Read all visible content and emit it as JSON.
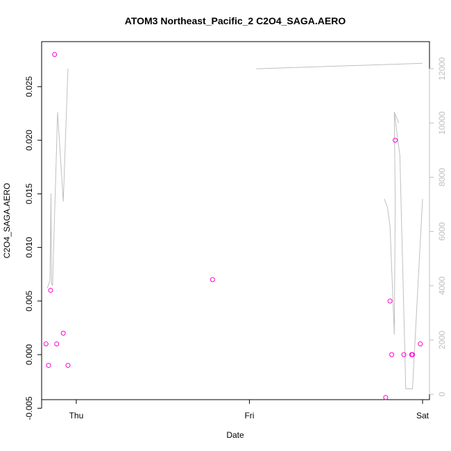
{
  "chart_data": {
    "type": "scatter",
    "title": "ATOM3 Northeast_Pacific_2 C2O4_SAGA.AERO",
    "xlabel": "Date",
    "ylabel": "C2O4_SAGA.AERO",
    "x_ticks": [
      {
        "label": "Thu",
        "value": 0
      },
      {
        "label": "Fri",
        "value": 1
      },
      {
        "label": "Sat",
        "value": 2
      }
    ],
    "xlim": [
      -0.2,
      2.04
    ],
    "ylim": [
      -0.0042,
      0.0292
    ],
    "y_ticks": [
      "-0.005",
      "0.000",
      "0.005",
      "0.010",
      "0.015",
      "0.020",
      "0.025"
    ],
    "y_tick_values": [
      -0.005,
      0,
      0.005,
      0.01,
      0.015,
      0.02,
      0.025
    ],
    "y2lim": [
      -200,
      13000
    ],
    "y2_ticks": [
      "0",
      "2000",
      "4000",
      "6000",
      "8000",
      "10000",
      "12000"
    ],
    "y2_tick_values": [
      0,
      2000,
      4000,
      6000,
      8000,
      10000,
      12000
    ],
    "grid": false,
    "series": [
      {
        "kind": "points",
        "color": "#ff00cc",
        "marker": "open-circle",
        "x": [
          -0.175,
          -0.16,
          -0.148,
          -0.125,
          -0.113,
          -0.075,
          -0.048,
          0.787,
          1.787,
          1.812,
          1.822,
          1.842,
          1.892,
          1.937,
          1.942,
          1.987
        ],
        "y": [
          0.001,
          -0.001,
          0.006,
          0.028,
          0.001,
          0.002,
          -0.001,
          0.007,
          -0.004,
          0.005,
          0.0,
          0.02,
          0.0,
          0.0,
          0.0,
          0.001
        ]
      },
      {
        "kind": "line",
        "axis": "right",
        "color": "#bfbfbf",
        "segments": [
          {
            "x": [
              -0.167,
              -0.152,
              -0.146,
              -0.143,
              -0.137,
              -0.108,
              -0.075,
              -0.048
            ],
            "y": [
              3900,
              4200,
              7400,
              4100,
              4000,
              10400,
              7100,
              12000
            ]
          },
          {
            "x": [
              1.779,
              1.797,
              1.812,
              1.837,
              1.842,
              1.842,
              1.837,
              1.862
            ],
            "y": [
              7200,
              6900,
              6200,
              2200,
              7000,
              7200,
              10400,
              10000
            ]
          },
          {
            "x": [
              1.837,
              1.869,
              1.903,
              1.942,
              2.0
            ],
            "y": [
              10400,
              8800,
              200,
              200,
              7200
            ]
          },
          {
            "x": [
              1.04,
              2.0
            ],
            "y": [
              12000,
              12200
            ]
          }
        ]
      }
    ]
  }
}
